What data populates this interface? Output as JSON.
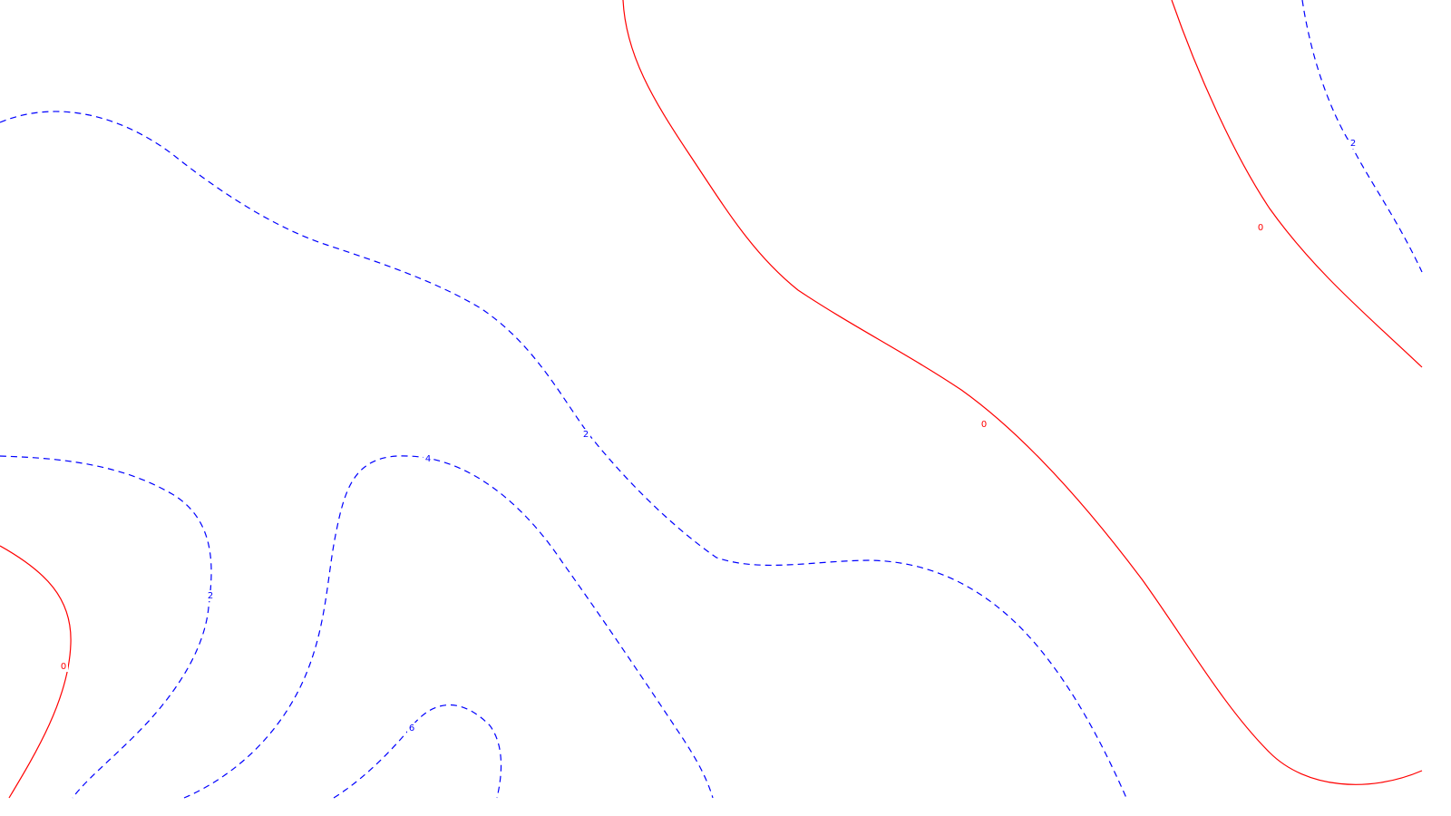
{
  "chart_data": {
    "type": "contour",
    "title": "",
    "xlabel": "",
    "ylabel": "",
    "grid": false,
    "legend": "none",
    "colors": {
      "positive": "#0000ff",
      "negative_or_zero": "#ff0000",
      "background": "#ffffff"
    },
    "line_styles": {
      "positive": "dashed",
      "zero": "solid"
    },
    "levels": [
      {
        "value": 0,
        "label": "0"
      },
      {
        "value": 2,
        "label": "2"
      },
      {
        "value": 4,
        "label": "4"
      },
      {
        "value": 6,
        "label": "6"
      }
    ],
    "contours": [
      {
        "id": "zero-center-right",
        "level": 0,
        "label": "0"
      },
      {
        "id": "zero-top-right",
        "level": 0,
        "label": "0"
      },
      {
        "id": "zero-bottom-left",
        "level": 0,
        "label": "0"
      },
      {
        "id": "two-upper",
        "level": 2,
        "label": "2"
      },
      {
        "id": "two-top-right",
        "level": 2,
        "label": "2"
      },
      {
        "id": "two-left",
        "level": 2,
        "label": "2"
      },
      {
        "id": "four-middle",
        "level": 4,
        "label": "4"
      },
      {
        "id": "six-bottom",
        "level": 6,
        "label": "6"
      }
    ]
  }
}
